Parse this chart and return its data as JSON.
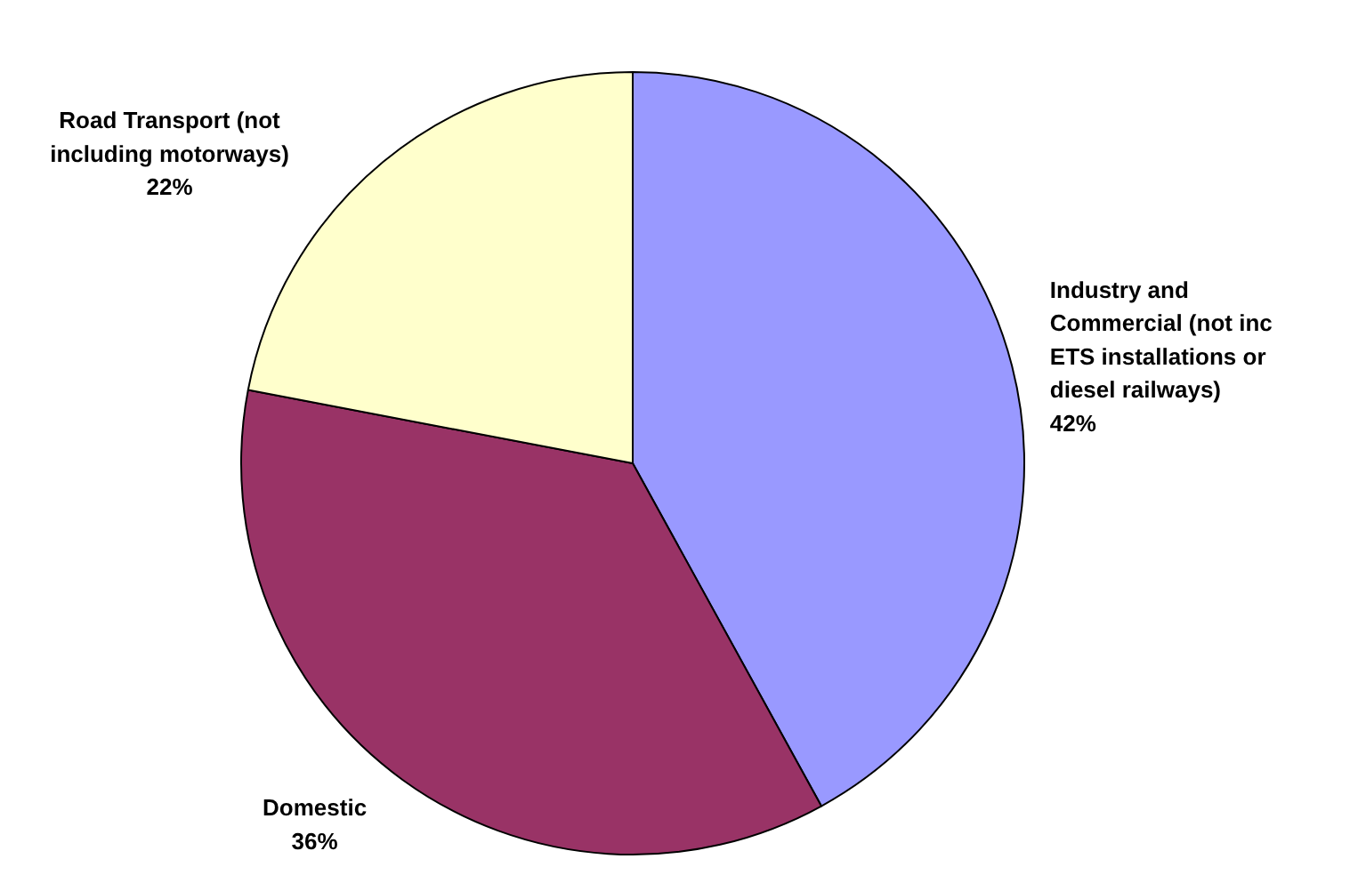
{
  "chart_data": {
    "type": "pie",
    "categories": [
      "Industry and Commercial (not inc ETS installations or diesel railways)",
      "Domestic",
      "Road Transport (not including motorways)"
    ],
    "values": [
      42,
      36,
      22
    ],
    "colors": [
      "#9999ff",
      "#993366",
      "#ffffcc"
    ],
    "value_labels": [
      "42%",
      "36%",
      "22%"
    ]
  }
}
